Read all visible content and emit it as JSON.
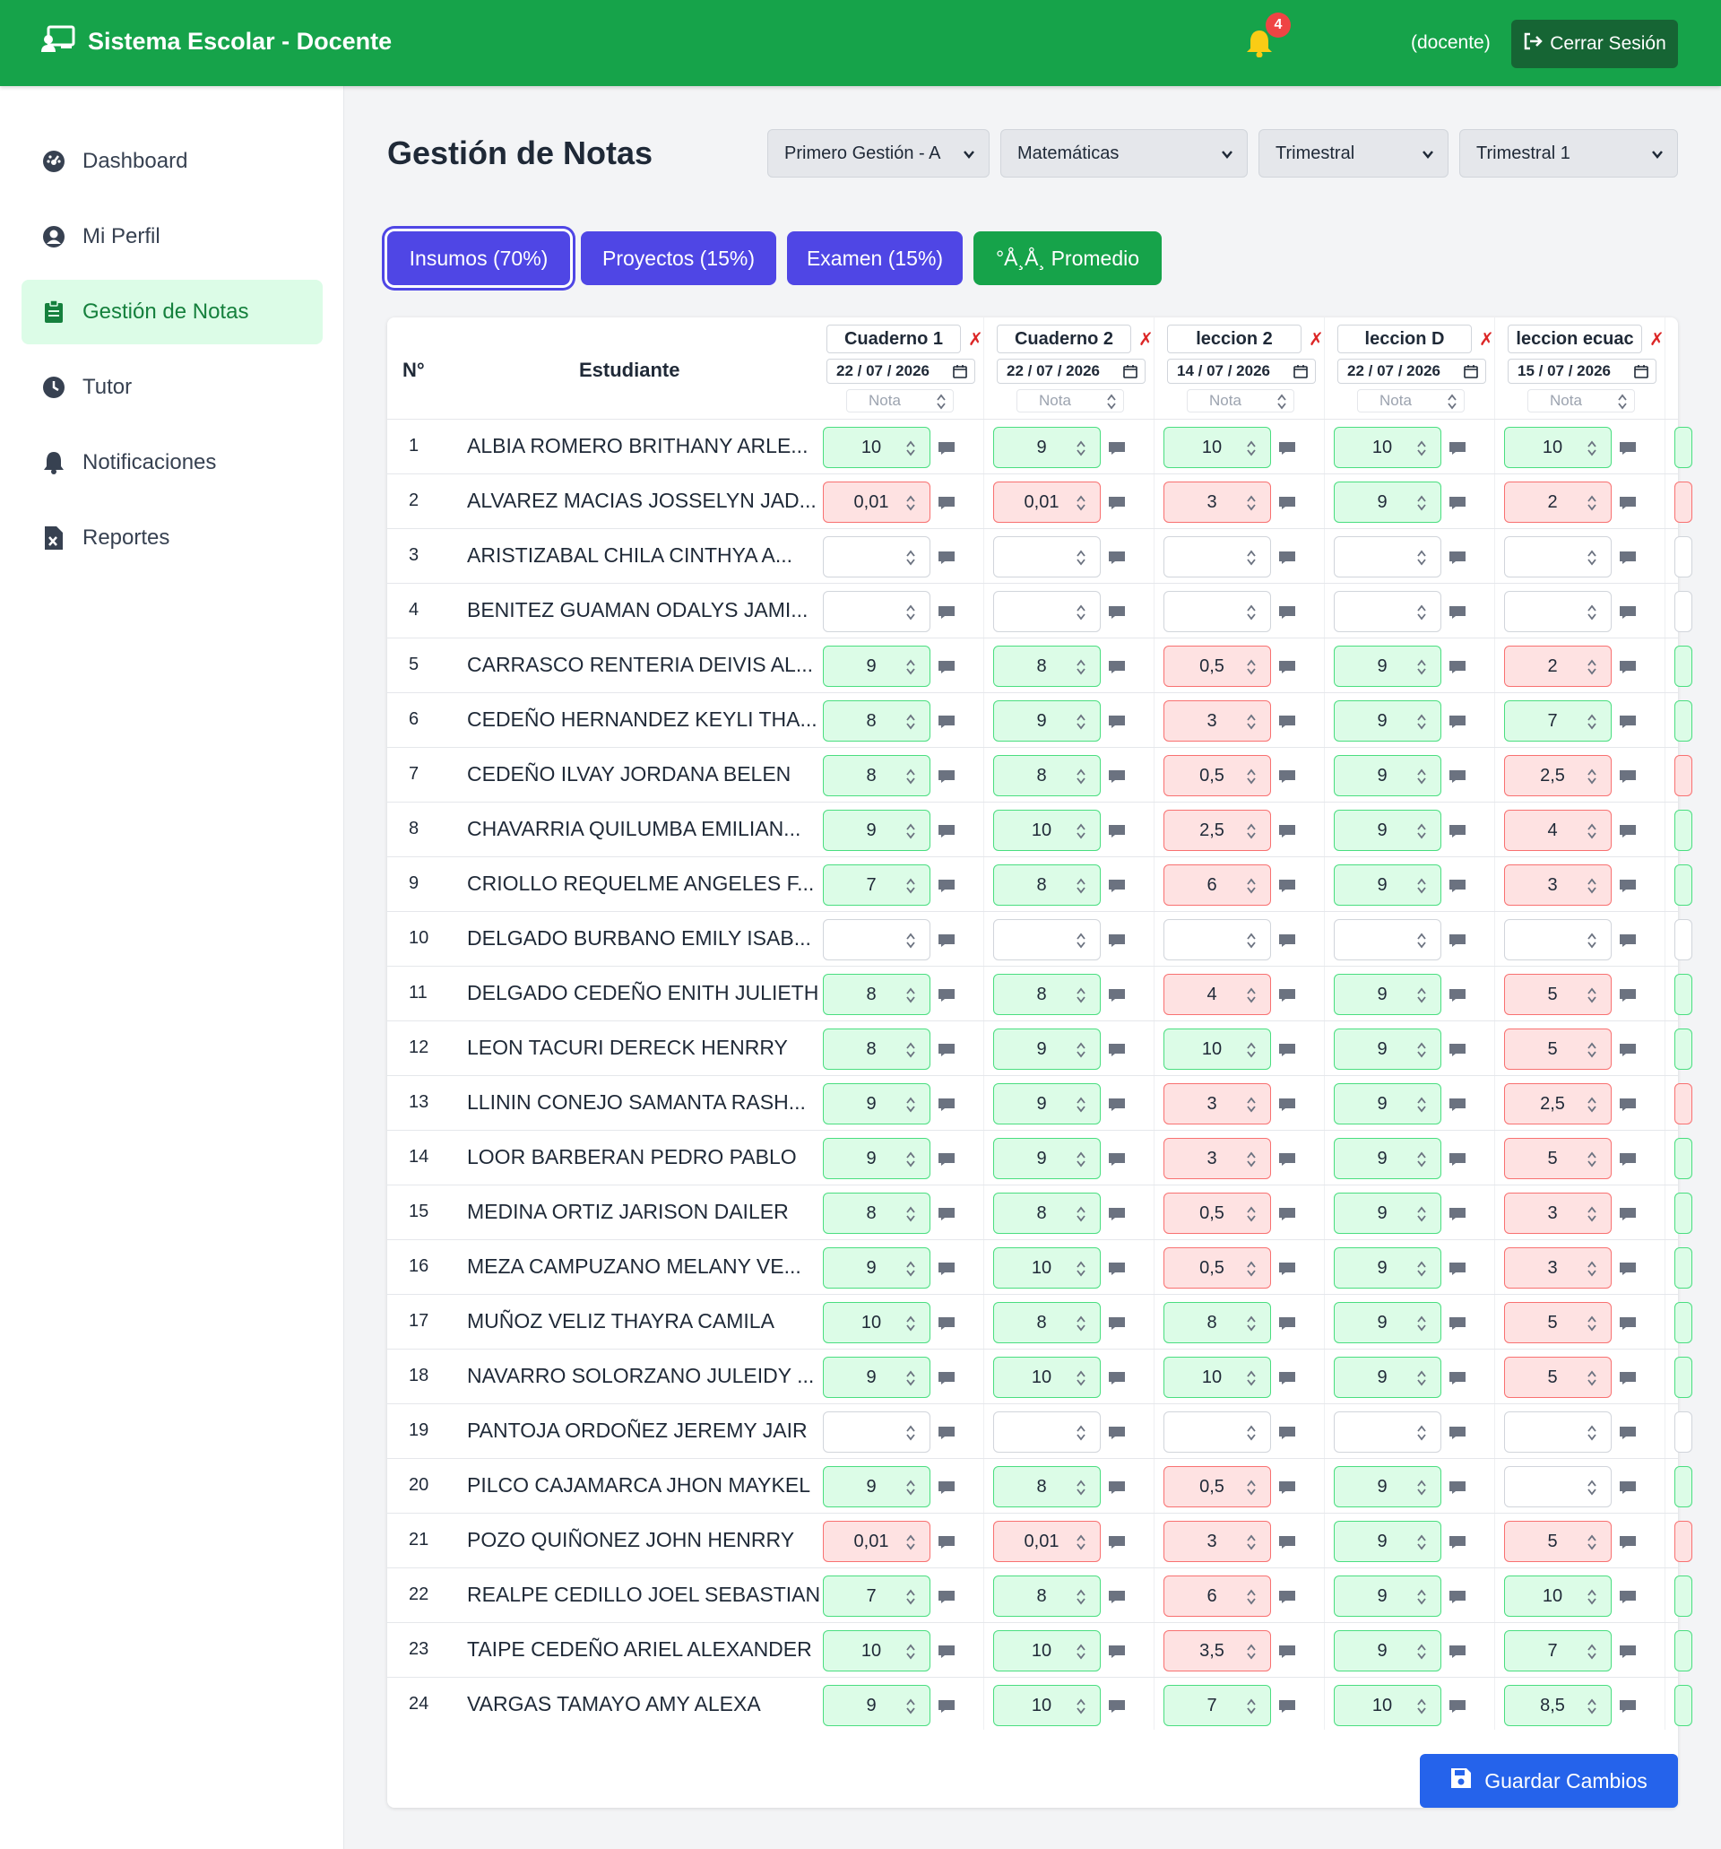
{
  "app": {
    "title": "Sistema Escolar - Docente",
    "notifications": "4",
    "user": "(docente)",
    "logout": "Cerrar Sesión"
  },
  "sidebar": {
    "items": [
      {
        "label": "Dashboard",
        "icon": "dashboard-icon"
      },
      {
        "label": "Mi Perfil",
        "icon": "user-circle-icon"
      },
      {
        "label": "Gestión de Notas",
        "icon": "clipboard-icon"
      },
      {
        "label": "Tutor",
        "icon": "clock-icon"
      },
      {
        "label": "Notificaciones",
        "icon": "bell-icon"
      },
      {
        "label": "Reportes",
        "icon": "file-excel-icon"
      }
    ]
  },
  "page": {
    "title": "Gestión de Notas",
    "filters": {
      "curso": "Primero Gestión - A",
      "materia": "Matemáticas",
      "periodo": "Trimestral",
      "subperiodo": "Trimestral 1"
    },
    "tabs": {
      "insumos": "Insumos (70%)",
      "proyectos": "Proyectos (15%)",
      "examen": "Examen (15%)",
      "promedio": "°Å¸Å¸ Promedio"
    }
  },
  "table": {
    "headers": {
      "no": "N°",
      "student": "Estudiante",
      "nota": "Nota"
    },
    "columns": [
      {
        "name": "Cuaderno 1",
        "date": "22 / 07 / 2026"
      },
      {
        "name": "Cuaderno 2",
        "date": "22 / 07 / 2026"
      },
      {
        "name": "leccion 2",
        "date": "14 / 07 / 2026"
      },
      {
        "name": "leccion D",
        "date": "22 / 07 / 2026"
      },
      {
        "name": "leccion ecuac",
        "date": "15 / 07 / 2026"
      }
    ],
    "rows": [
      {
        "n": "1",
        "name": "ALBIA ROMERO BRITHANY ARLE...",
        "grades": [
          "10",
          "9",
          "10",
          "10",
          "10"
        ]
      },
      {
        "n": "2",
        "name": "ALVAREZ MACIAS JOSSELYN JAD...",
        "grades": [
          "0,01",
          "0,01",
          "3",
          "9",
          "2"
        ]
      },
      {
        "n": "3",
        "name": "ARISTIZABAL CHILA CINTHYA A...",
        "grades": [
          "",
          "",
          "",
          "",
          ""
        ]
      },
      {
        "n": "4",
        "name": "BENITEZ GUAMAN ODALYS JAMI...",
        "grades": [
          "",
          "",
          "",
          "",
          ""
        ]
      },
      {
        "n": "5",
        "name": "CARRASCO RENTERIA DEIVIS AL...",
        "grades": [
          "9",
          "8",
          "0,5",
          "9",
          "2"
        ]
      },
      {
        "n": "6",
        "name": "CEDEÑO HERNANDEZ KEYLI THA...",
        "grades": [
          "8",
          "9",
          "3",
          "9",
          "7"
        ]
      },
      {
        "n": "7",
        "name": "CEDEÑO ILVAY JORDANA BELEN",
        "grades": [
          "8",
          "8",
          "0,5",
          "9",
          "2,5"
        ]
      },
      {
        "n": "8",
        "name": "CHAVARRIA QUILUMBA EMILIAN...",
        "grades": [
          "9",
          "10",
          "2,5",
          "9",
          "4"
        ]
      },
      {
        "n": "9",
        "name": "CRIOLLO REQUELME ANGELES F...",
        "grades": [
          "7",
          "8",
          "6",
          "9",
          "3"
        ]
      },
      {
        "n": "10",
        "name": "DELGADO BURBANO EMILY ISAB...",
        "grades": [
          "",
          "",
          "",
          "",
          ""
        ]
      },
      {
        "n": "11",
        "name": "DELGADO CEDEÑO ENITH JULIETH",
        "grades": [
          "8",
          "8",
          "4",
          "9",
          "5"
        ]
      },
      {
        "n": "12",
        "name": "LEON TACURI DERECK HENRRY",
        "grades": [
          "8",
          "9",
          "10",
          "9",
          "5"
        ]
      },
      {
        "n": "13",
        "name": "LLININ CONEJO SAMANTA RASH...",
        "grades": [
          "9",
          "9",
          "3",
          "9",
          "2,5"
        ]
      },
      {
        "n": "14",
        "name": "LOOR BARBERAN PEDRO PABLO",
        "grades": [
          "9",
          "9",
          "3",
          "9",
          "5"
        ]
      },
      {
        "n": "15",
        "name": "MEDINA ORTIZ JARISON DAILER",
        "grades": [
          "8",
          "8",
          "0,5",
          "9",
          "3"
        ]
      },
      {
        "n": "16",
        "name": "MEZA CAMPUZANO MELANY VE...",
        "grades": [
          "9",
          "10",
          "0,5",
          "9",
          "3"
        ]
      },
      {
        "n": "17",
        "name": "MUÑOZ VELIZ THAYRA CAMILA",
        "grades": [
          "10",
          "8",
          "8",
          "9",
          "5"
        ]
      },
      {
        "n": "18",
        "name": "NAVARRO SOLORZANO JULEIDY ...",
        "grades": [
          "9",
          "10",
          "10",
          "9",
          "5"
        ]
      },
      {
        "n": "19",
        "name": "PANTOJA ORDOÑEZ JEREMY JAIR",
        "grades": [
          "",
          "",
          "",
          "",
          ""
        ]
      },
      {
        "n": "20",
        "name": "PILCO CAJAMARCA JHON MAYKEL",
        "grades": [
          "9",
          "8",
          "0,5",
          "9",
          ""
        ]
      },
      {
        "n": "21",
        "name": "POZO QUIÑONEZ JOHN HENRRY",
        "grades": [
          "0,01",
          "0,01",
          "3",
          "9",
          "5"
        ]
      },
      {
        "n": "22",
        "name": "REALPE CEDILLO JOEL SEBASTIAN",
        "grades": [
          "7",
          "8",
          "6",
          "9",
          "10"
        ]
      },
      {
        "n": "23",
        "name": "TAIPE CEDEÑO ARIEL ALEXANDER",
        "grades": [
          "10",
          "10",
          "3,5",
          "9",
          "7"
        ]
      },
      {
        "n": "24",
        "name": "VARGAS TAMAYO AMY ALEXA",
        "grades": [
          "9",
          "10",
          "7",
          "10",
          "8,5"
        ]
      }
    ],
    "sixth_column_partial": [
      "green",
      "red",
      "",
      "",
      "green",
      "green",
      "red",
      "green",
      "green",
      "",
      "green",
      "green",
      "red",
      "green",
      "green",
      "green",
      "green",
      "green",
      "",
      "green",
      "red",
      "green",
      "green",
      "green"
    ]
  },
  "actions": {
    "save": "Guardar Cambios"
  },
  "colors": {
    "brand": "#16a34a",
    "accent": "#4f46e5",
    "pass": "#dcfce7",
    "fail": "#fee2e2",
    "save": "#2563eb"
  }
}
